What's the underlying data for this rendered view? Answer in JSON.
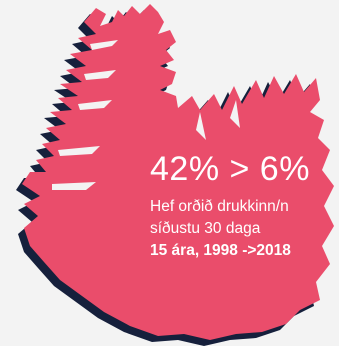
{
  "stat": {
    "headline": "42% > 6%",
    "line1": "Hef orðið drukkinn/n",
    "line2": "síðustu 30 daga",
    "line3": "15 ára, 1998 ->2018"
  },
  "map": {
    "region": "Iceland",
    "fill_color": "#ea4d6b",
    "shadow_color": "#16203c",
    "background_color": "#f3f3f3"
  }
}
